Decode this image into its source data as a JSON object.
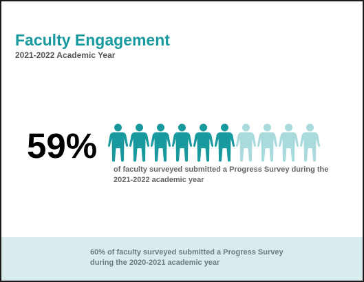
{
  "header": {
    "title": "Faculty Engagement",
    "subtitle": "2021-2022 Academic Year"
  },
  "current": {
    "percent_label": "59%",
    "description": "of faculty surveyed submitted a Progress Survey during the 2021-2022 academic year",
    "icons_total": 10,
    "icons_filled": 6
  },
  "previous": {
    "description": "60% of faculty surveyed submitted a Progress Survey during the 2020-2021 academic year"
  },
  "colors": {
    "accent": "#17999d",
    "icon_filled": "#17999d",
    "icon_faded": "#a9dadc",
    "footer_bg": "#d8ecee"
  },
  "icon_name": "person-icon"
}
